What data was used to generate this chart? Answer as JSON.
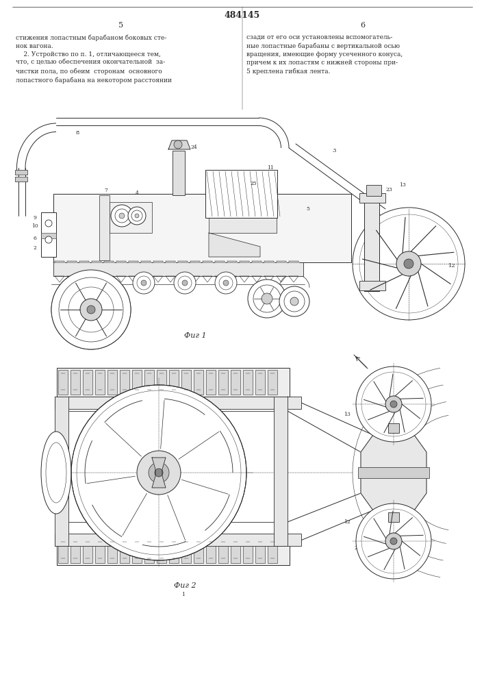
{
  "title": "484145",
  "text_left_header": "5",
  "text_right_header": "6",
  "col_text_left": "стижения лопастным барабаном боковых сте-\nнок вагона.\n    2. Устройство по п. 1, отличающееся тем,\nчто, с целью обеспечения окончательной  за-\nчистки пола, по обеим  сторонам  основного\nлопастного барабана на некотором расстоянии",
  "col_text_right": "сзади от его оси установлены вспомогатель-\nные лопастные барабаны с вертикальной осью\nвращения, имеющие форму усеченного конуса,\nпричем к их лопастям с нижней стороны при-\n5 креплена гибкая лента.",
  "fig1_caption": "Фиг 1",
  "fig2_caption": "Фиг 2",
  "bg_color": "#ffffff",
  "line_color": "#2a2a2a",
  "lw": 0.7
}
